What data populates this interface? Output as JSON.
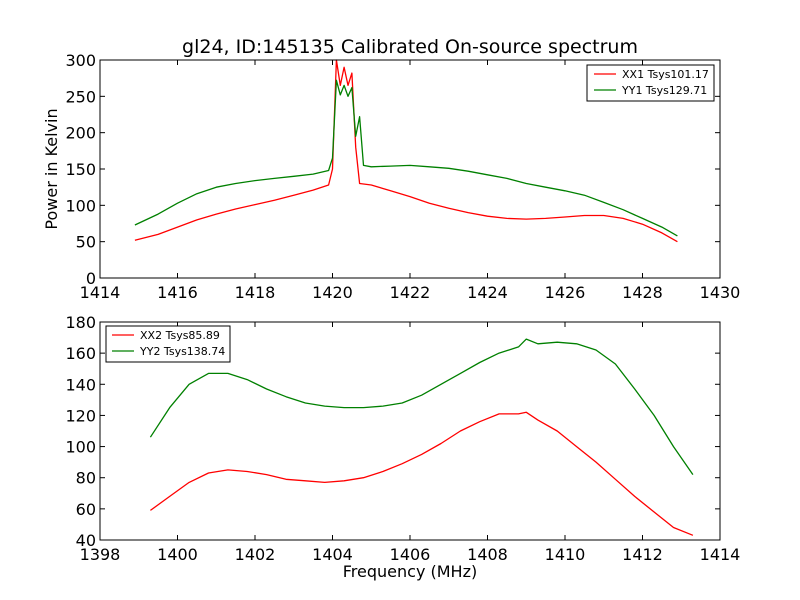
{
  "chart_data": [
    {
      "type": "line",
      "title": "gl24, ID:145135 Calibrated On-source spectrum",
      "xlabel": "",
      "ylabel": "Power in Kelvin",
      "xlim": [
        1414,
        1430
      ],
      "ylim": [
        0,
        300
      ],
      "xticks": [
        "1414",
        "1416",
        "1418",
        "1420",
        "1422",
        "1424",
        "1426",
        "1428",
        "1430"
      ],
      "yticks": [
        "0",
        "50",
        "100",
        "150",
        "200",
        "250",
        "300"
      ],
      "legend_position": "top-right",
      "series": [
        {
          "name": "XX1 Tsys101.17",
          "color": "#ff0000",
          "points": [
            [
              1414.9,
              52
            ],
            [
              1415.5,
              60
            ],
            [
              1416,
              70
            ],
            [
              1416.5,
              80
            ],
            [
              1417,
              88
            ],
            [
              1417.5,
              95
            ],
            [
              1418,
              101
            ],
            [
              1418.5,
              107
            ],
            [
              1419,
              114
            ],
            [
              1419.5,
              121
            ],
            [
              1419.9,
              128
            ],
            [
              1420,
              150
            ],
            [
              1420.1,
              300
            ],
            [
              1420.2,
              265
            ],
            [
              1420.3,
              290
            ],
            [
              1420.4,
              265
            ],
            [
              1420.5,
              282
            ],
            [
              1420.6,
              180
            ],
            [
              1420.7,
              130
            ],
            [
              1421,
              128
            ],
            [
              1421.5,
              120
            ],
            [
              1422,
              112
            ],
            [
              1422.5,
              103
            ],
            [
              1423,
              96
            ],
            [
              1423.5,
              90
            ],
            [
              1424,
              85
            ],
            [
              1424.5,
              82
            ],
            [
              1425,
              81
            ],
            [
              1425.5,
              82
            ],
            [
              1426,
              84
            ],
            [
              1426.5,
              86
            ],
            [
              1427,
              86
            ],
            [
              1427.5,
              82
            ],
            [
              1428,
              74
            ],
            [
              1428.5,
              62
            ],
            [
              1428.9,
              50
            ]
          ]
        },
        {
          "name": "YY1 Tsys129.71",
          "color": "#008000",
          "points": [
            [
              1414.9,
              73
            ],
            [
              1415.5,
              88
            ],
            [
              1416,
              103
            ],
            [
              1416.5,
              116
            ],
            [
              1417,
              125
            ],
            [
              1417.5,
              130
            ],
            [
              1418,
              134
            ],
            [
              1418.5,
              137
            ],
            [
              1419,
              140
            ],
            [
              1419.5,
              143
            ],
            [
              1419.9,
              148
            ],
            [
              1420,
              165
            ],
            [
              1420.1,
              272
            ],
            [
              1420.2,
              252
            ],
            [
              1420.3,
              265
            ],
            [
              1420.4,
              250
            ],
            [
              1420.5,
              262
            ],
            [
              1420.6,
              195
            ],
            [
              1420.7,
              222
            ],
            [
              1420.8,
              155
            ],
            [
              1421,
              153
            ],
            [
              1421.5,
              154
            ],
            [
              1422,
              155
            ],
            [
              1422.5,
              153
            ],
            [
              1423,
              151
            ],
            [
              1423.5,
              147
            ],
            [
              1424,
              142
            ],
            [
              1424.5,
              137
            ],
            [
              1425,
              130
            ],
            [
              1425.5,
              125
            ],
            [
              1426,
              120
            ],
            [
              1426.5,
              114
            ],
            [
              1427,
              104
            ],
            [
              1427.5,
              94
            ],
            [
              1428,
              82
            ],
            [
              1428.5,
              70
            ],
            [
              1428.9,
              58
            ]
          ]
        }
      ]
    },
    {
      "type": "line",
      "title": "",
      "xlabel": "Frequency (MHz)",
      "ylabel": "",
      "xlim": [
        1398,
        1414
      ],
      "ylim": [
        40,
        180
      ],
      "xticks": [
        "1398",
        "1400",
        "1402",
        "1404",
        "1406",
        "1408",
        "1410",
        "1412",
        "1414"
      ],
      "yticks": [
        "40",
        "60",
        "80",
        "100",
        "120",
        "140",
        "160",
        "180"
      ],
      "legend_position": "top-left",
      "series": [
        {
          "name": "XX2 Tsys85.89",
          "color": "#ff0000",
          "points": [
            [
              1399.3,
              59
            ],
            [
              1399.8,
              68
            ],
            [
              1400.3,
              77
            ],
            [
              1400.8,
              83
            ],
            [
              1401.3,
              85
            ],
            [
              1401.8,
              84
            ],
            [
              1402.3,
              82
            ],
            [
              1402.8,
              79
            ],
            [
              1403.3,
              78
            ],
            [
              1403.8,
              77
            ],
            [
              1404.3,
              78
            ],
            [
              1404.8,
              80
            ],
            [
              1405.3,
              84
            ],
            [
              1405.8,
              89
            ],
            [
              1406.3,
              95
            ],
            [
              1406.8,
              102
            ],
            [
              1407.3,
              110
            ],
            [
              1407.8,
              116
            ],
            [
              1408.3,
              121
            ],
            [
              1408.8,
              121
            ],
            [
              1409,
              122
            ],
            [
              1409.3,
              117
            ],
            [
              1409.8,
              110
            ],
            [
              1410.3,
              100
            ],
            [
              1410.8,
              90
            ],
            [
              1411.3,
              79
            ],
            [
              1411.8,
              68
            ],
            [
              1412.3,
              58
            ],
            [
              1412.8,
              48
            ],
            [
              1413.3,
              43
            ]
          ]
        },
        {
          "name": "YY2 Tsys138.74",
          "color": "#008000",
          "points": [
            [
              1399.3,
              106
            ],
            [
              1399.8,
              125
            ],
            [
              1400.3,
              140
            ],
            [
              1400.8,
              147
            ],
            [
              1401.3,
              147
            ],
            [
              1401.8,
              143
            ],
            [
              1402.3,
              137
            ],
            [
              1402.8,
              132
            ],
            [
              1403.3,
              128
            ],
            [
              1403.8,
              126
            ],
            [
              1404.3,
              125
            ],
            [
              1404.8,
              125
            ],
            [
              1405.3,
              126
            ],
            [
              1405.8,
              128
            ],
            [
              1406.3,
              133
            ],
            [
              1406.8,
              140
            ],
            [
              1407.3,
              147
            ],
            [
              1407.8,
              154
            ],
            [
              1408.3,
              160
            ],
            [
              1408.8,
              164
            ],
            [
              1409,
              169
            ],
            [
              1409.3,
              166
            ],
            [
              1409.8,
              167
            ],
            [
              1410.3,
              166
            ],
            [
              1410.8,
              162
            ],
            [
              1411.3,
              153
            ],
            [
              1411.8,
              137
            ],
            [
              1412.3,
              120
            ],
            [
              1412.8,
              100
            ],
            [
              1413.3,
              82
            ]
          ]
        }
      ]
    }
  ]
}
